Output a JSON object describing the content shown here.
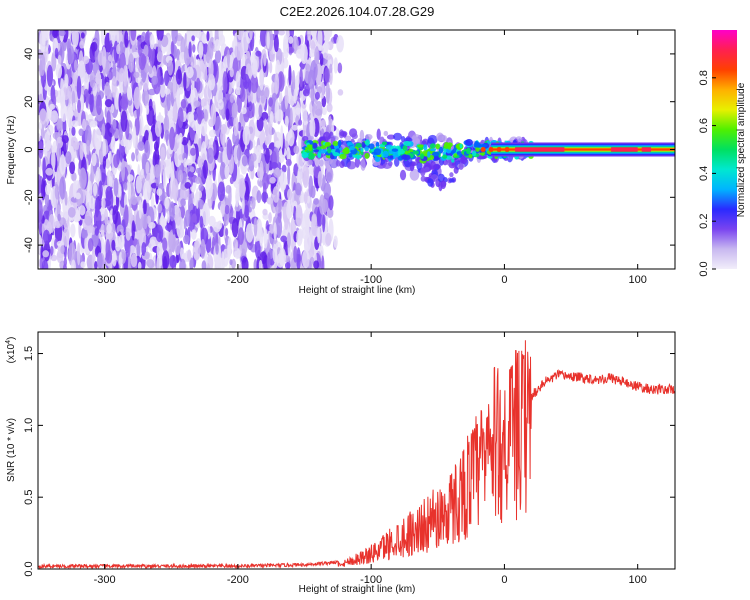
{
  "chart_data": [
    {
      "type": "heatmap",
      "title": "C2E2.2026.104.07.28.G29",
      "xlabel": "Height of straight line (km)",
      "ylabel": "Frequency (Hz)",
      "xlim": [
        -350,
        128
      ],
      "ylim": [
        -50,
        50
      ],
      "xticks": [
        -300,
        -200,
        -100,
        0,
        100
      ],
      "yticks": [
        -40,
        -20,
        0,
        20,
        40
      ],
      "colorbar": {
        "label": "Normalized spectral amplitude",
        "range": [
          0,
          1
        ],
        "ticks": [
          0.0,
          0.2,
          0.4,
          0.6,
          0.8
        ],
        "colors": [
          "#f2eefa",
          "#c8b8f0",
          "#7a44f0",
          "#2a2aff",
          "#00b4ff",
          "#00e8d0",
          "#00e060",
          "#50f000",
          "#e8f000",
          "#ffb000",
          "#ff4000",
          "#ff2050",
          "#ff00c8"
        ]
      },
      "regions": [
        {
          "name": "broadband noise",
          "x": [
            -350,
            -130
          ],
          "freq_range": [
            -50,
            50
          ],
          "amplitude": 0.1
        },
        {
          "name": "signal trace",
          "x": [
            -150,
            128
          ],
          "center_freq": 0,
          "amplitude_peak": 0.95
        }
      ]
    },
    {
      "type": "line",
      "title": "",
      "xlabel": "Height of straight line (km)",
      "ylabel": "SNR (10 * v/v)",
      "y_multiplier": "(x10",
      "y_multiplier_exp": "4",
      "xlim": [
        -350,
        128
      ],
      "ylim": [
        0,
        1.65
      ],
      "xticks": [
        -300,
        -200,
        -100,
        0,
        100
      ],
      "yticks": [
        "0.0",
        "0.5",
        "1.0",
        "1.5"
      ],
      "series": [
        {
          "name": "SNR",
          "color": "#e8322c",
          "x": [
            -350,
            -300,
            -250,
            -200,
            -150,
            -120,
            -100,
            -80,
            -60,
            -40,
            -20,
            -10,
            0,
            10,
            20,
            30,
            40,
            50,
            60,
            70,
            80,
            90,
            100,
            110,
            128
          ],
          "y": [
            0.02,
            0.02,
            0.02,
            0.02,
            0.03,
            0.05,
            0.12,
            0.25,
            0.35,
            0.5,
            0.8,
            1.0,
            1.05,
            1.1,
            1.2,
            1.3,
            1.35,
            1.34,
            1.33,
            1.32,
            1.33,
            1.3,
            1.27,
            1.25,
            1.25
          ]
        }
      ]
    }
  ]
}
